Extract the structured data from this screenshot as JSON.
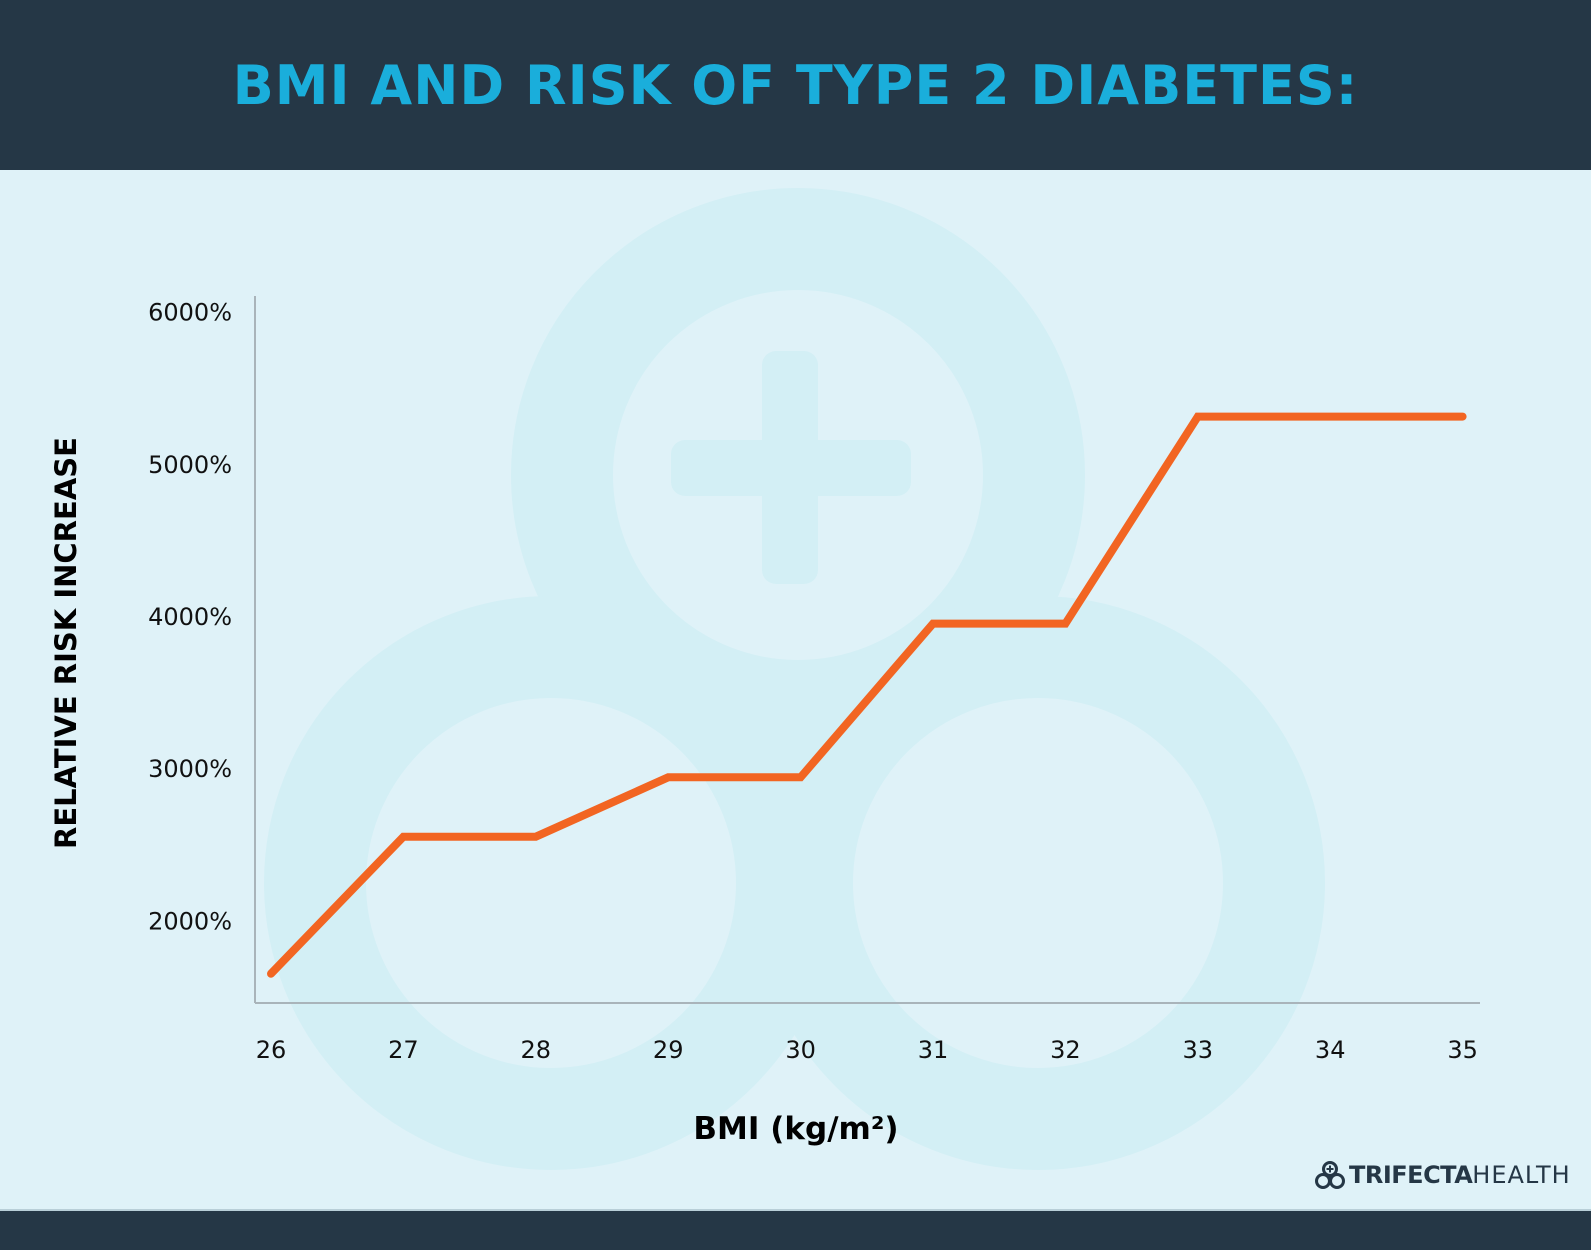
{
  "chart_data": {
    "type": "line",
    "title": "BMI AND RISK OF TYPE 2 DIABETES:",
    "xlabel": "BMI (kg/m²)",
    "ylabel": "RELATIVE RISK INCREASE",
    "x_ticks": [
      "26",
      "27",
      "28",
      "29",
      "30",
      "31",
      "32",
      "33",
      "34",
      "35"
    ],
    "y_ticks": [
      "2000%",
      "3000%",
      "4000%",
      "5000%",
      "6000%"
    ],
    "y_tick_values": [
      2000,
      3000,
      4000,
      5000,
      6000
    ],
    "xlim": [
      26,
      35
    ],
    "ylim": [
      1800,
      6000
    ],
    "grid": false,
    "series": [
      {
        "x": [
          26,
          27,
          28,
          29,
          30,
          31,
          32,
          33,
          35
        ],
        "y": [
          1650,
          2550,
          2550,
          2940,
          2940,
          3950,
          3950,
          5310,
          5310
        ]
      }
    ],
    "colors": {
      "line": "#f26522",
      "axis": "#a9b4ba",
      "title": "#1aaedb",
      "header": "#253746",
      "background": "#dff2f8",
      "watermark": "#d3eff5"
    }
  },
  "brand": {
    "logo_bold": "TRIFECTA",
    "logo_light": "HEALTH",
    "icon": "trifecta-circles-plus-icon"
  }
}
